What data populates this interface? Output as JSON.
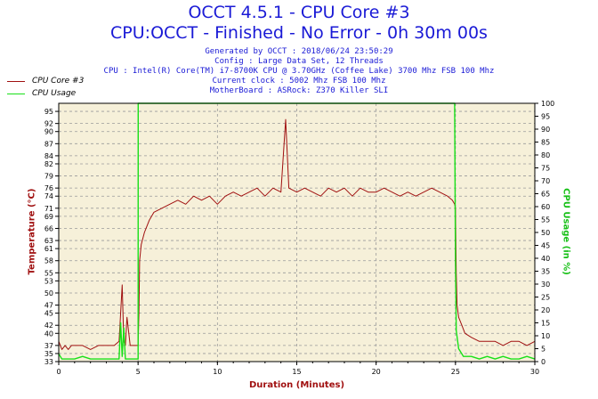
{
  "header": {
    "title_line1": "OCCT 4.5.1 - CPU Core #3",
    "title_line2": "CPU:OCCT - Finished - No Error - 0h 30m 00s",
    "generated": "Generated by OCCT : 2018/06/24 23:50:29",
    "config": "Config : Large Data Set, 12 Threads",
    "cpu": "CPU : Intel(R) Core(TM) i7-8700K CPU @ 3.70GHz (Coffee Lake) 3700 Mhz FSB 100 Mhz",
    "clock": "Current clock : 5002 Mhz FSB 100 Mhz",
    "motherboard": "MotherBoard : ASRock: Z370 Killer SLI"
  },
  "colors": {
    "core": "#a01010",
    "usage": "#18e018",
    "plot_bg": "#f6f0d9",
    "grid": "#9a9a9a"
  },
  "chart_data": {
    "type": "line",
    "xlabel": "Duration (Minutes)",
    "ylabel": "Temperature (°C)",
    "y2label": "CPU Usage (in %)",
    "xlim": [
      0,
      30
    ],
    "ylim": [
      33,
      97
    ],
    "y2lim": [
      0,
      100
    ],
    "grid": true,
    "legend_position": "top-left",
    "x_ticks": [
      "0",
      "5",
      "10",
      "15",
      "20",
      "25",
      "30"
    ],
    "y_ticks": [
      "33",
      "35",
      "37",
      "40",
      "42",
      "45",
      "47",
      "50",
      "53",
      "55",
      "58",
      "61",
      "63",
      "66",
      "69",
      "71",
      "74",
      "76",
      "79",
      "82",
      "84",
      "87",
      "90",
      "92",
      "95"
    ],
    "y2_ticks": [
      "0",
      "5",
      "10",
      "15",
      "20",
      "25",
      "30",
      "35",
      "40",
      "45",
      "50",
      "55",
      "60",
      "65",
      "70",
      "75",
      "80",
      "85",
      "90",
      "95",
      "100"
    ],
    "series": [
      {
        "name": "CPU Core #3",
        "axis": "left",
        "x": [
          0,
          0.2,
          0.4,
          0.6,
          0.8,
          1.0,
          1.5,
          2.0,
          2.5,
          3.0,
          3.5,
          3.8,
          4.0,
          4.1,
          4.2,
          4.3,
          4.5,
          4.8,
          5.0,
          5.05,
          5.1,
          5.2,
          5.4,
          5.7,
          6.0,
          6.5,
          7.0,
          7.5,
          8.0,
          8.5,
          9.0,
          9.5,
          10.0,
          10.5,
          11.0,
          11.5,
          12.0,
          12.5,
          13.0,
          13.5,
          14.0,
          14.3,
          14.5,
          15.0,
          15.5,
          16.0,
          16.5,
          17.0,
          17.5,
          18.0,
          18.5,
          19.0,
          19.5,
          20.0,
          20.5,
          21.0,
          21.5,
          22.0,
          22.5,
          23.0,
          23.5,
          24.0,
          24.5,
          24.8,
          24.95,
          25.0,
          25.05,
          25.1,
          25.2,
          25.4,
          25.6,
          26.0,
          26.5,
          27.0,
          27.5,
          28.0,
          28.5,
          29.0,
          29.5,
          30.0
        ],
        "values": [
          38,
          36,
          37,
          36,
          37,
          37,
          37,
          36,
          37,
          37,
          37,
          38,
          52,
          38,
          37,
          44,
          37,
          37,
          37,
          45,
          58,
          62,
          65,
          68,
          70,
          71,
          72,
          73,
          72,
          74,
          73,
          74,
          72,
          74,
          75,
          74,
          75,
          76,
          74,
          76,
          75,
          93,
          76,
          75,
          76,
          75,
          74,
          76,
          75,
          76,
          74,
          76,
          75,
          75,
          76,
          75,
          74,
          75,
          74,
          75,
          76,
          75,
          74,
          73,
          72,
          71,
          55,
          47,
          44,
          42,
          40,
          39,
          38,
          38,
          38,
          37,
          38,
          38,
          37,
          38
        ]
      },
      {
        "name": "CPU Usage",
        "axis": "right",
        "x": [
          0,
          0.2,
          0.5,
          1.0,
          1.5,
          2.0,
          2.5,
          3.0,
          3.5,
          3.8,
          3.9,
          4.0,
          4.1,
          4.2,
          4.5,
          4.9,
          5.0,
          5.01,
          6.0,
          10.0,
          15.0,
          20.0,
          24.0,
          24.95,
          25.0,
          25.05,
          25.2,
          25.5,
          26.0,
          26.5,
          27.0,
          27.5,
          28.0,
          28.5,
          29.0,
          29.5,
          30.0
        ],
        "values": [
          3,
          1,
          1,
          1,
          2,
          1,
          1,
          1,
          1,
          1,
          15,
          2,
          13,
          1,
          1,
          1,
          1,
          100,
          100,
          100,
          100,
          100,
          100,
          100,
          40,
          12,
          5,
          2,
          2,
          1,
          2,
          1,
          2,
          1,
          1,
          2,
          1
        ]
      }
    ]
  }
}
